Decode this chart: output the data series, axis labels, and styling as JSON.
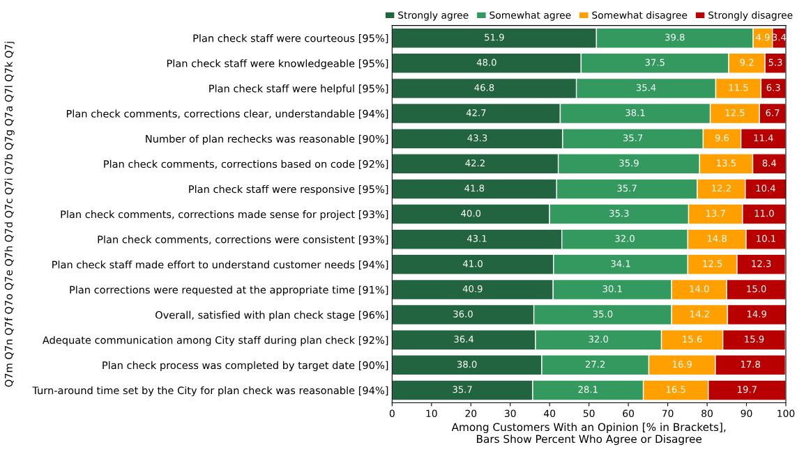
{
  "chart_data": {
    "type": "bar",
    "orientation": "horizontal",
    "stacked": true,
    "categories": [
      "Plan check staff were courteous [95%]",
      "Plan check staff were knowledgeable [95%]",
      "Plan check staff were helpful [95%]",
      "Plan check comments, corrections clear, understandable [94%]",
      "Number of plan rechecks was reasonable [90%]",
      "Plan check comments, corrections based on code [92%]",
      "Plan check staff were responsive [95%]",
      "Plan check comments, corrections made sense for project [93%]",
      "Plan check comments, corrections were consistent [93%]",
      "Plan check staff made effort to understand customer needs [94%]",
      "Plan corrections were requested at the appropriate time [91%]",
      "Overall, satisfied with plan check stage [96%]",
      "Adequate communication among City staff during plan check [92%]",
      "Plan check process was completed by target date [90%]",
      "Turn-around time set by the City for plan check was reasonable [94%]"
    ],
    "series": [
      {
        "name": "Strongly agree",
        "color": "#22643f",
        "values": [
          51.9,
          48.0,
          46.8,
          42.7,
          43.3,
          42.2,
          41.8,
          40.0,
          43.1,
          41.0,
          40.9,
          36.0,
          36.4,
          38.0,
          35.7
        ],
        "value_labels": [
          "51.9",
          "48.0",
          "46.8",
          "42.7",
          "43.3",
          "42.2",
          "41.8",
          "40.0",
          "43.1",
          "41.0",
          "40.9",
          "36.0",
          "36.4",
          "38.0",
          "35.7"
        ]
      },
      {
        "name": "Somewhat agree",
        "color": "#33995f",
        "values": [
          39.8,
          37.5,
          35.4,
          38.1,
          35.7,
          35.9,
          35.7,
          35.3,
          32.0,
          34.1,
          30.1,
          35.0,
          32.0,
          27.2,
          28.1
        ],
        "value_labels": [
          "39.8",
          "37.5",
          "35.4",
          "38.1",
          "35.7",
          "35.9",
          "35.7",
          "35.3",
          "32.0",
          "34.1",
          "30.1",
          "35.0",
          "32.0",
          "27.2",
          "28.1"
        ]
      },
      {
        "name": "Somewhat disagree",
        "color": "#ff9f00",
        "values": [
          4.9,
          9.2,
          11.5,
          12.5,
          9.6,
          13.5,
          12.2,
          13.7,
          14.8,
          12.5,
          14.0,
          14.2,
          15.6,
          16.9,
          16.5
        ],
        "value_labels": [
          "4.9",
          "9.2",
          "11.5",
          "12.5",
          "9.6",
          "13.5",
          "12.2",
          "13.7",
          "14.8",
          "12.5",
          "14.0",
          "14.2",
          "15.6",
          "16.9",
          "16.5"
        ]
      },
      {
        "name": "Strongly disagree",
        "color": "#b80000",
        "values": [
          3.4,
          5.3,
          6.3,
          6.7,
          11.4,
          8.4,
          10.4,
          11.0,
          10.1,
          12.3,
          15.0,
          14.9,
          15.9,
          17.8,
          19.7
        ],
        "value_labels": [
          "3.4",
          "5.3",
          "6.3",
          "6.7",
          "11.4",
          "8.4",
          "10.4",
          "11.0",
          "10.1",
          "12.3",
          "15.0",
          "14.9",
          "15.9",
          "17.8",
          "19.7"
        ]
      }
    ],
    "xlim": [
      0,
      100
    ],
    "xticks": [
      0,
      10,
      20,
      30,
      40,
      50,
      60,
      70,
      80,
      90,
      100
    ],
    "xlabel": "Among Customers With an Opinion [% in Brackets],\nBars Show Percent Who Agree or Disagree",
    "ylabel": "Q7m Q7n Q7f Q7o Q7e Q7h Q7d Q7c Q7i Q7b Q7g Q7a Q7l Q7k Q7j",
    "legend": "top",
    "grid": false
  }
}
